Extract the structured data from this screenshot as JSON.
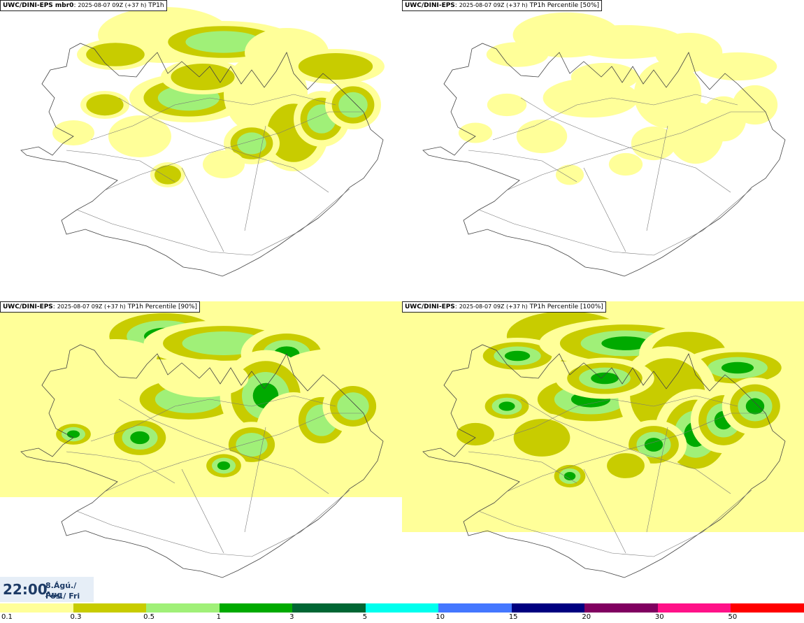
{
  "panels": [
    {
      "model": "UWC/DINI-EPS mbr0",
      "run": "2025-08-07 09Z (+37 h)",
      "field": "TP1h",
      "intensity": 1.0
    },
    {
      "model": "UWC/DINI-EPS",
      "run": "2025-08-07 09Z (+37 h)",
      "field": "TP1h Percentile [50%]",
      "intensity": 0.35
    },
    {
      "model": "UWC/DINI-EPS",
      "run": "2025-08-07 09Z (+37 h)",
      "field": "TP1h Percentile [90%]",
      "intensity": 1.3
    },
    {
      "model": "UWC/DINI-EPS",
      "run": "2025-08-07 09Z (+37 h)",
      "field": "TP1h Percentile [100%]",
      "intensity": 2.2
    }
  ],
  "valid_time": {
    "time": "22:00",
    "date": "8.Ágú./ Aug",
    "day": "Fös./ Fri"
  },
  "legend": {
    "ticks": [
      "0.1",
      "0.3",
      "0.5",
      "1",
      "3",
      "5",
      "10",
      "15",
      "20",
      "30",
      "50"
    ],
    "colors": [
      "#ffff99",
      "#c8cc00",
      "#a0f078",
      "#00aa00",
      "#006633",
      "#00ffee",
      "#4477ff",
      "#000080",
      "#800060",
      "#ff1188",
      "#ff0000"
    ]
  }
}
